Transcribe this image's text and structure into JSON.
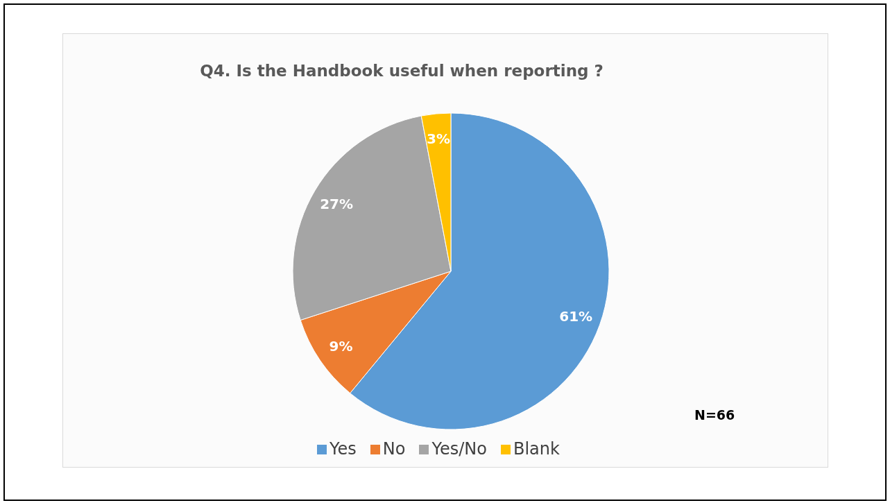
{
  "chart_data": {
    "type": "pie",
    "title": "Q4. Is the Handbook useful when reporting ?",
    "categories": [
      "Yes",
      "No",
      "Yes/No",
      "Blank"
    ],
    "values": [
      61,
      9,
      27,
      3
    ],
    "colors": [
      "#5b9bd5",
      "#ed7d31",
      "#a5a5a5",
      "#ffc000"
    ],
    "value_labels": [
      "61%",
      "9%",
      "27%",
      "3%"
    ],
    "legend": "bottom",
    "annotations": [
      "N=66"
    ]
  }
}
